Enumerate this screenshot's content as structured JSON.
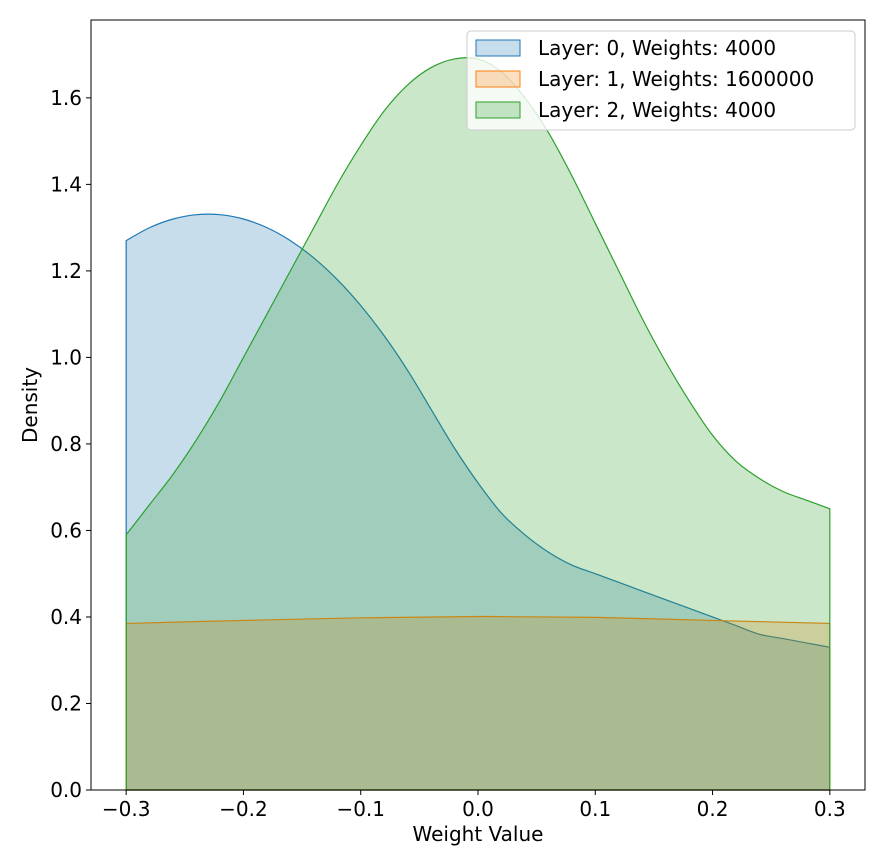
{
  "chart_data": {
    "type": "area",
    "title": "",
    "xlabel": "Weight Value",
    "ylabel": "Density",
    "xlim": [
      -0.33,
      0.33
    ],
    "ylim": [
      0.0,
      1.78
    ],
    "xticks": [
      -0.3,
      -0.2,
      -0.1,
      0.0,
      0.1,
      0.2,
      0.3
    ],
    "xtick_labels": [
      "−0.3",
      "−0.2",
      "−0.1",
      "0.0",
      "0.1",
      "0.2",
      "0.3"
    ],
    "yticks": [
      0.0,
      0.2,
      0.4,
      0.6,
      0.8,
      1.0,
      1.2,
      1.4,
      1.6
    ],
    "ytick_labels": [
      "0.0",
      "0.2",
      "0.4",
      "0.6",
      "0.8",
      "1.0",
      "1.2",
      "1.4",
      "1.6"
    ],
    "grid": false,
    "legend_position": "top-right",
    "series": [
      {
        "name": "Layer: 0, Weights: 4000",
        "color": "#1f77b4",
        "fill": "rgba(31,119,180,0.25)",
        "x": [
          -0.3,
          -0.28,
          -0.26,
          -0.24,
          -0.22,
          -0.2,
          -0.18,
          -0.16,
          -0.14,
          -0.12,
          -0.1,
          -0.08,
          -0.06,
          -0.04,
          -0.02,
          0.0,
          0.02,
          0.04,
          0.06,
          0.08,
          0.1,
          0.12,
          0.14,
          0.16,
          0.18,
          0.2,
          0.22,
          0.24,
          0.26,
          0.28,
          0.3
        ],
        "y": [
          1.27,
          1.3,
          1.32,
          1.33,
          1.33,
          1.32,
          1.3,
          1.27,
          1.23,
          1.18,
          1.12,
          1.05,
          0.97,
          0.88,
          0.79,
          0.71,
          0.64,
          0.59,
          0.55,
          0.52,
          0.5,
          0.48,
          0.46,
          0.44,
          0.42,
          0.4,
          0.38,
          0.36,
          0.35,
          0.34,
          0.33
        ]
      },
      {
        "name": "Layer: 1, Weights: 1600000",
        "color": "#ff7f0e",
        "fill": "rgba(255,127,14,0.25)",
        "x": [
          -0.3,
          -0.2,
          -0.1,
          0.0,
          0.1,
          0.2,
          0.3
        ],
        "y": [
          0.385,
          0.392,
          0.398,
          0.401,
          0.399,
          0.392,
          0.385
        ]
      },
      {
        "name": "Layer: 2, Weights: 4000",
        "color": "#2ca02c",
        "fill": "rgba(44,160,44,0.25)",
        "x": [
          -0.3,
          -0.28,
          -0.26,
          -0.24,
          -0.22,
          -0.2,
          -0.18,
          -0.16,
          -0.14,
          -0.12,
          -0.1,
          -0.08,
          -0.06,
          -0.04,
          -0.02,
          0.0,
          0.02,
          0.04,
          0.06,
          0.08,
          0.1,
          0.12,
          0.14,
          0.16,
          0.18,
          0.2,
          0.22,
          0.24,
          0.26,
          0.28,
          0.3
        ],
        "y": [
          0.59,
          0.66,
          0.73,
          0.81,
          0.9,
          1.0,
          1.1,
          1.2,
          1.3,
          1.4,
          1.49,
          1.57,
          1.63,
          1.67,
          1.69,
          1.69,
          1.66,
          1.6,
          1.52,
          1.42,
          1.31,
          1.2,
          1.09,
          0.99,
          0.9,
          0.82,
          0.76,
          0.72,
          0.69,
          0.67,
          0.65
        ]
      }
    ]
  }
}
